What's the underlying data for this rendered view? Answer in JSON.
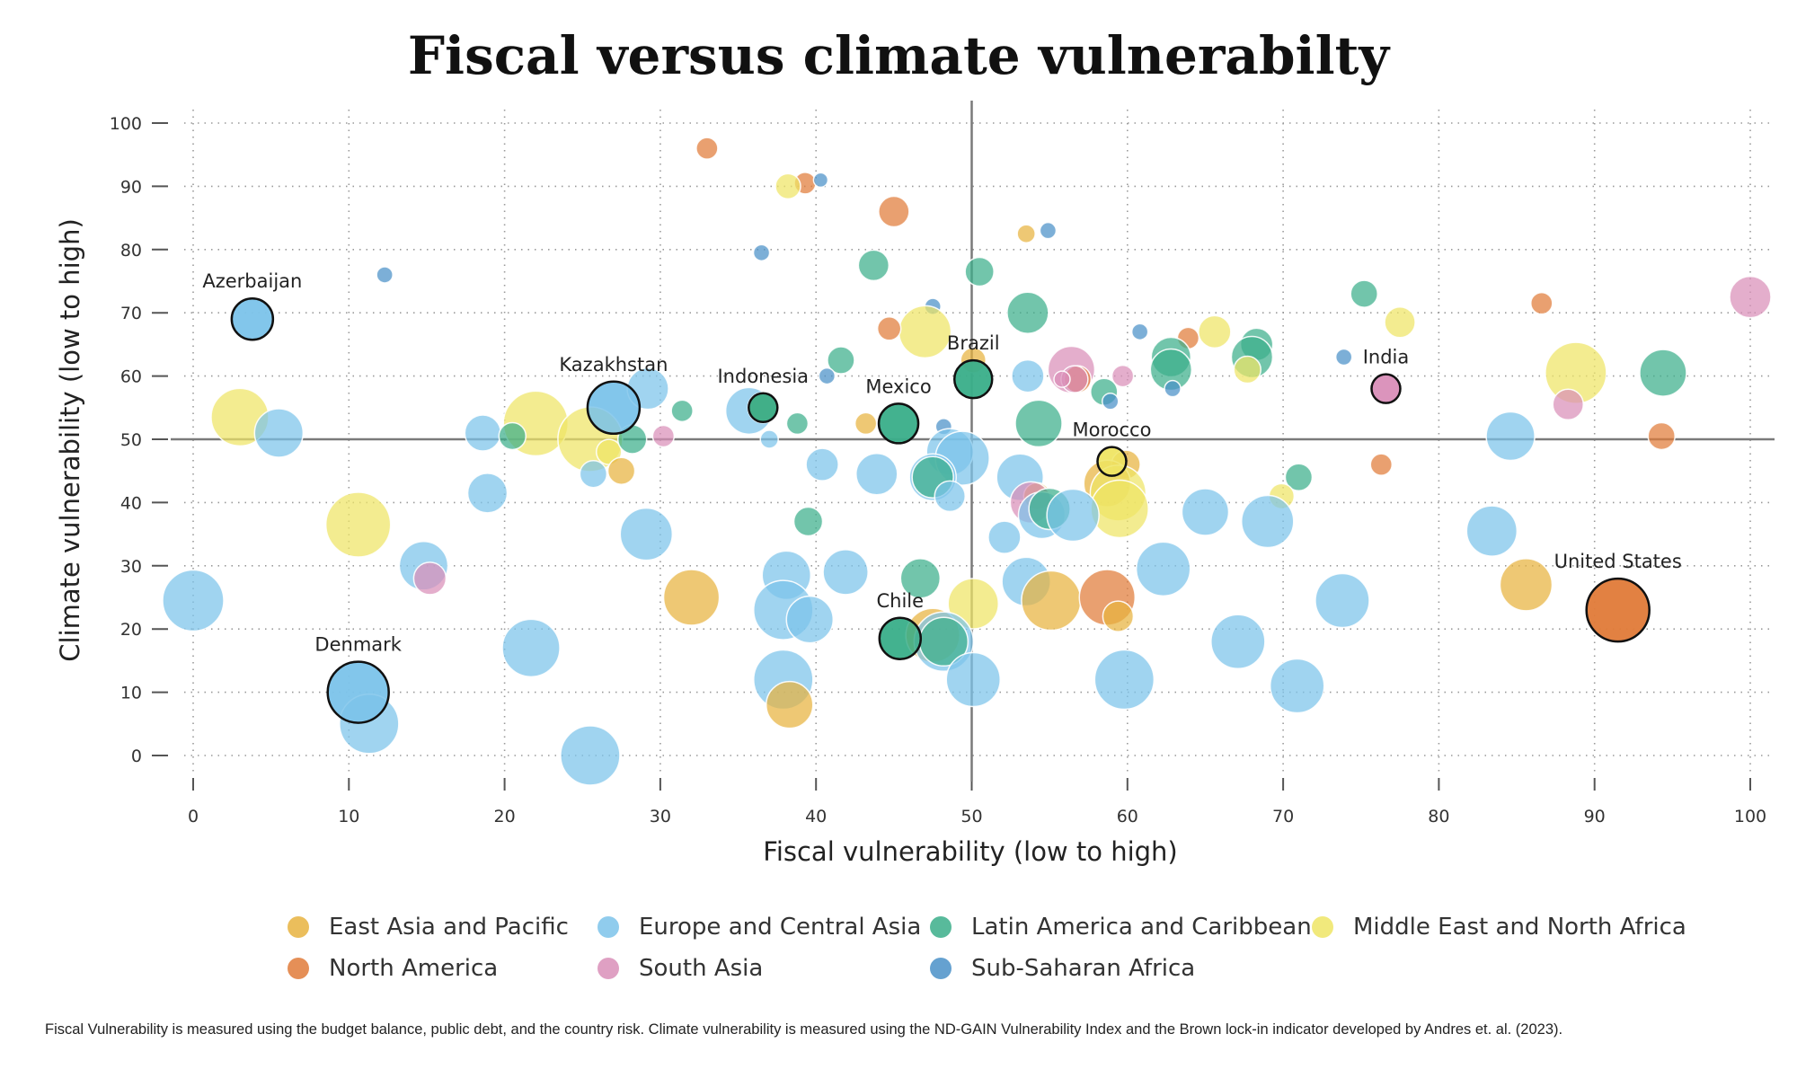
{
  "chart_data": {
    "type": "scatter",
    "title": "Fiscal versus climate vulnerabilty",
    "xlabel": "Fiscal vulnerability (low to high)",
    "ylabel": "Climate vulnerability (low to high)",
    "xlim": [
      0,
      100
    ],
    "ylim": [
      0,
      100
    ],
    "xticks": [
      0,
      10,
      20,
      30,
      40,
      50,
      60,
      70,
      80,
      90,
      100
    ],
    "yticks": [
      0,
      10,
      20,
      30,
      40,
      50,
      60,
      70,
      80,
      90,
      100
    ],
    "reference_lines": {
      "x": 50,
      "y": 50
    },
    "grid": "dotted",
    "legend_position": "bottom",
    "groups": [
      {
        "name": "East Asia and Pacific",
        "color": "#E8B33F"
      },
      {
        "name": "Europe and Central Asia",
        "color": "#7CC3EA"
      },
      {
        "name": "Latin America and Caribbean",
        "color": "#3BAE8A"
      },
      {
        "name": "Middle East and North Africa",
        "color": "#EFE565"
      },
      {
        "name": "North America",
        "color": "#E07B39"
      },
      {
        "name": "South Asia",
        "color": "#D98FB8"
      },
      {
        "name": "Sub-Saharan Africa",
        "color": "#4A90C8"
      }
    ],
    "points": [
      {
        "x": 33,
        "y": 96,
        "size": 12,
        "group": 4
      },
      {
        "x": 39.3,
        "y": 90.5,
        "size": 12,
        "group": 4
      },
      {
        "x": 38.2,
        "y": 90,
        "size": 14,
        "group": 3
      },
      {
        "x": 40.3,
        "y": 91,
        "size": 8,
        "group": 6
      },
      {
        "x": 45,
        "y": 86,
        "size": 17,
        "group": 4
      },
      {
        "x": 53.5,
        "y": 82.5,
        "size": 10,
        "group": 0
      },
      {
        "x": 54.9,
        "y": 83,
        "size": 9,
        "group": 6
      },
      {
        "x": 36.5,
        "y": 79.5,
        "size": 9,
        "group": 6
      },
      {
        "x": 12.3,
        "y": 76,
        "size": 9,
        "group": 6
      },
      {
        "x": 43.7,
        "y": 77.5,
        "size": 17,
        "group": 2
      },
      {
        "x": 50.5,
        "y": 76.5,
        "size": 16,
        "group": 2
      },
      {
        "x": 47.5,
        "y": 71,
        "size": 9,
        "group": 6
      },
      {
        "x": 47,
        "y": 67,
        "size": 29,
        "group": 3
      },
      {
        "x": 44.7,
        "y": 67.5,
        "size": 13,
        "group": 4
      },
      {
        "x": 53.6,
        "y": 70,
        "size": 23,
        "group": 2
      },
      {
        "x": 75.2,
        "y": 73,
        "size": 15,
        "group": 2
      },
      {
        "x": 77.5,
        "y": 68.5,
        "size": 17,
        "group": 3
      },
      {
        "x": 86.6,
        "y": 71.5,
        "size": 12,
        "group": 4
      },
      {
        "x": 100,
        "y": 72.5,
        "size": 23,
        "group": 5
      },
      {
        "x": 60.8,
        "y": 67,
        "size": 9,
        "group": 6
      },
      {
        "x": 63.9,
        "y": 66,
        "size": 12,
        "group": 4
      },
      {
        "x": 65.6,
        "y": 67,
        "size": 18,
        "group": 3
      },
      {
        "x": 68.3,
        "y": 65,
        "size": 18,
        "group": 2
      },
      {
        "x": 68,
        "y": 63,
        "size": 23,
        "group": 2
      },
      {
        "x": 62.8,
        "y": 63,
        "size": 22,
        "group": 2
      },
      {
        "x": 62.8,
        "y": 61,
        "size": 23,
        "group": 2
      },
      {
        "x": 67.7,
        "y": 61,
        "size": 15,
        "group": 3
      },
      {
        "x": 88.8,
        "y": 60.5,
        "size": 34,
        "group": 3
      },
      {
        "x": 94.4,
        "y": 60.5,
        "size": 26,
        "group": 2
      },
      {
        "x": 73.9,
        "y": 63,
        "size": 9,
        "group": 6
      },
      {
        "x": 76.6,
        "y": 58,
        "size": 16,
        "group": 5
      },
      {
        "x": 88.3,
        "y": 55.5,
        "size": 17,
        "group": 5
      },
      {
        "x": 84.6,
        "y": 50.5,
        "size": 27,
        "group": 1
      },
      {
        "x": 94.3,
        "y": 50.5,
        "size": 15,
        "group": 4
      },
      {
        "x": 41.6,
        "y": 62.5,
        "size": 15,
        "group": 2
      },
      {
        "x": 40.7,
        "y": 60,
        "size": 9,
        "group": 6
      },
      {
        "x": 50.1,
        "y": 62.5,
        "size": 14,
        "group": 0
      },
      {
        "x": 50.1,
        "y": 59.5,
        "size": 21,
        "group": 2
      },
      {
        "x": 53.6,
        "y": 60,
        "size": 18,
        "group": 1
      },
      {
        "x": 56.4,
        "y": 61,
        "size": 26,
        "group": 5
      },
      {
        "x": 56.8,
        "y": 59.5,
        "size": 15,
        "group": 4
      },
      {
        "x": 56.6,
        "y": 59.5,
        "size": 15,
        "group": 5
      },
      {
        "x": 59.7,
        "y": 60,
        "size": 12,
        "group": 5
      },
      {
        "x": 58.5,
        "y": 57.5,
        "size": 15,
        "group": 2
      },
      {
        "x": 58.9,
        "y": 56,
        "size": 9,
        "group": 6
      },
      {
        "x": 62.9,
        "y": 58,
        "size": 9,
        "group": 6
      },
      {
        "x": 55.8,
        "y": 59.5,
        "size": 9,
        "group": 5
      },
      {
        "x": 54.3,
        "y": 52.5,
        "size": 26,
        "group": 2
      },
      {
        "x": 59,
        "y": 46.5,
        "size": 16,
        "group": 3
      },
      {
        "x": 59.9,
        "y": 46,
        "size": 16,
        "group": 0
      },
      {
        "x": 58.7,
        "y": 43,
        "size": 26,
        "group": 0
      },
      {
        "x": 59.4,
        "y": 41.5,
        "size": 31,
        "group": 3
      },
      {
        "x": 59.5,
        "y": 39,
        "size": 32,
        "group": 3
      },
      {
        "x": 71,
        "y": 44,
        "size": 15,
        "group": 2
      },
      {
        "x": 69.9,
        "y": 41,
        "size": 14,
        "group": 3
      },
      {
        "x": 65,
        "y": 38.5,
        "size": 26,
        "group": 1
      },
      {
        "x": 69,
        "y": 37,
        "size": 29,
        "group": 1
      },
      {
        "x": 3,
        "y": 53.5,
        "size": 32,
        "group": 3
      },
      {
        "x": 5.5,
        "y": 51,
        "size": 27,
        "group": 1
      },
      {
        "x": 3.8,
        "y": 69,
        "size": 23,
        "group": 1
      },
      {
        "x": 27,
        "y": 55,
        "size": 29,
        "group": 1
      },
      {
        "x": 29.2,
        "y": 58,
        "size": 23,
        "group": 1
      },
      {
        "x": 31.4,
        "y": 54.5,
        "size": 12,
        "group": 2
      },
      {
        "x": 22,
        "y": 52.5,
        "size": 36,
        "group": 3
      },
      {
        "x": 18.6,
        "y": 51,
        "size": 20,
        "group": 1
      },
      {
        "x": 20.5,
        "y": 50.5,
        "size": 15,
        "group": 2
      },
      {
        "x": 25.5,
        "y": 50,
        "size": 36,
        "group": 3
      },
      {
        "x": 26.7,
        "y": 48,
        "size": 14,
        "group": 3
      },
      {
        "x": 28.2,
        "y": 50,
        "size": 16,
        "group": 2
      },
      {
        "x": 30.2,
        "y": 50.5,
        "size": 12,
        "group": 5
      },
      {
        "x": 25.7,
        "y": 44.5,
        "size": 15,
        "group": 1
      },
      {
        "x": 27.5,
        "y": 45,
        "size": 15,
        "group": 0
      },
      {
        "x": 35.7,
        "y": 54.5,
        "size": 26,
        "group": 1
      },
      {
        "x": 36.6,
        "y": 55,
        "size": 17,
        "group": 0
      },
      {
        "x": 36.6,
        "y": 55,
        "size": 16,
        "group": 2
      },
      {
        "x": 37,
        "y": 50,
        "size": 10,
        "group": 1
      },
      {
        "x": 38.8,
        "y": 52.5,
        "size": 12,
        "group": 2
      },
      {
        "x": 43.2,
        "y": 52.5,
        "size": 12,
        "group": 0
      },
      {
        "x": 45.3,
        "y": 52.5,
        "size": 22,
        "group": 2
      },
      {
        "x": 48.2,
        "y": 52,
        "size": 9,
        "group": 6
      },
      {
        "x": 48.6,
        "y": 48,
        "size": 26,
        "group": 1
      },
      {
        "x": 49.4,
        "y": 47,
        "size": 30,
        "group": 1
      },
      {
        "x": 40.4,
        "y": 46,
        "size": 18,
        "group": 1
      },
      {
        "x": 43.9,
        "y": 44.5,
        "size": 23,
        "group": 1
      },
      {
        "x": 47.5,
        "y": 44,
        "size": 26,
        "group": 1
      },
      {
        "x": 47.5,
        "y": 44,
        "size": 23,
        "group": 2
      },
      {
        "x": 48.6,
        "y": 41,
        "size": 17,
        "group": 1
      },
      {
        "x": 53.1,
        "y": 44,
        "size": 26,
        "group": 1
      },
      {
        "x": 54.2,
        "y": 41,
        "size": 15,
        "group": 0
      },
      {
        "x": 53.8,
        "y": 40,
        "size": 23,
        "group": 5
      },
      {
        "x": 54.5,
        "y": 38,
        "size": 26,
        "group": 1
      },
      {
        "x": 55,
        "y": 39,
        "size": 23,
        "group": 2
      },
      {
        "x": 56.5,
        "y": 38,
        "size": 29,
        "group": 1
      },
      {
        "x": 52.1,
        "y": 34.5,
        "size": 18,
        "group": 1
      },
      {
        "x": 39.5,
        "y": 37,
        "size": 16,
        "group": 2
      },
      {
        "x": 18.9,
        "y": 41.5,
        "size": 22,
        "group": 1
      },
      {
        "x": 10.6,
        "y": 36.5,
        "size": 36,
        "group": 3
      },
      {
        "x": 29.1,
        "y": 35,
        "size": 29,
        "group": 1
      },
      {
        "x": 14.8,
        "y": 30,
        "size": 27,
        "group": 1
      },
      {
        "x": 15.2,
        "y": 28,
        "size": 18,
        "group": 5
      },
      {
        "x": 0,
        "y": 24.5,
        "size": 34,
        "group": 1
      },
      {
        "x": 32,
        "y": 25,
        "size": 31,
        "group": 0
      },
      {
        "x": 38.1,
        "y": 28.5,
        "size": 27,
        "group": 1
      },
      {
        "x": 41.9,
        "y": 29,
        "size": 25,
        "group": 1
      },
      {
        "x": 46.7,
        "y": 28,
        "size": 22,
        "group": 2
      },
      {
        "x": 50.1,
        "y": 24,
        "size": 28,
        "group": 3
      },
      {
        "x": 53.5,
        "y": 27.5,
        "size": 27,
        "group": 1
      },
      {
        "x": 55.1,
        "y": 24.5,
        "size": 33,
        "group": 0
      },
      {
        "x": 58.7,
        "y": 25,
        "size": 31,
        "group": 4
      },
      {
        "x": 59.4,
        "y": 22,
        "size": 17,
        "group": 0
      },
      {
        "x": 62.3,
        "y": 29.5,
        "size": 30,
        "group": 1
      },
      {
        "x": 37.9,
        "y": 23,
        "size": 33,
        "group": 1
      },
      {
        "x": 39.6,
        "y": 21.5,
        "size": 26,
        "group": 1
      },
      {
        "x": 45.4,
        "y": 18.5,
        "size": 23,
        "group": 2
      },
      {
        "x": 47.5,
        "y": 19,
        "size": 30,
        "group": 0
      },
      {
        "x": 48.2,
        "y": 18,
        "size": 33,
        "group": 1
      },
      {
        "x": 48.2,
        "y": 18,
        "size": 27,
        "group": 2
      },
      {
        "x": 21.7,
        "y": 17,
        "size": 32,
        "group": 1
      },
      {
        "x": 10.6,
        "y": 10,
        "size": 34,
        "group": 1
      },
      {
        "x": 11.3,
        "y": 5,
        "size": 33,
        "group": 1
      },
      {
        "x": 25.5,
        "y": 0,
        "size": 33,
        "group": 1
      },
      {
        "x": 37.9,
        "y": 12,
        "size": 33,
        "group": 1
      },
      {
        "x": 38.3,
        "y": 8,
        "size": 26,
        "group": 0
      },
      {
        "x": 50.1,
        "y": 12,
        "size": 30,
        "group": 1
      },
      {
        "x": 59.8,
        "y": 12,
        "size": 33,
        "group": 1
      },
      {
        "x": 67.1,
        "y": 18,
        "size": 30,
        "group": 1
      },
      {
        "x": 70.9,
        "y": 11,
        "size": 30,
        "group": 1
      },
      {
        "x": 73.8,
        "y": 24.5,
        "size": 30,
        "group": 1
      },
      {
        "x": 76.3,
        "y": 46,
        "size": 12,
        "group": 4
      },
      {
        "x": 83.4,
        "y": 35.5,
        "size": 28,
        "group": 1
      },
      {
        "x": 85.6,
        "y": 27,
        "size": 29,
        "group": 0
      },
      {
        "x": 91.5,
        "y": 23,
        "size": 35,
        "group": 4
      }
    ],
    "highlighted": [
      {
        "label": "Azerbaijan",
        "x": 3.8,
        "y": 69,
        "size": 23,
        "group": 1,
        "label_dx": 0,
        "label_dy": -1,
        "label_pos": "above"
      },
      {
        "label": "Kazakhstan",
        "x": 27,
        "y": 55,
        "size": 29,
        "group": 1,
        "label_pos": "above"
      },
      {
        "label": "Indonesia",
        "x": 36.6,
        "y": 55,
        "size": 16,
        "group": 2,
        "label_pos": "above"
      },
      {
        "label": "Mexico",
        "x": 45.3,
        "y": 52.5,
        "size": 22,
        "group": 2,
        "label_pos": "above"
      },
      {
        "label": "Brazil",
        "x": 50.1,
        "y": 59.5,
        "size": 21,
        "group": 2,
        "label_pos": "above"
      },
      {
        "label": "Morocco",
        "x": 59,
        "y": 46.5,
        "size": 16,
        "group": 3,
        "label_pos": "above"
      },
      {
        "label": "India",
        "x": 76.6,
        "y": 58,
        "size": 16,
        "group": 5,
        "label_pos": "above"
      },
      {
        "label": "Chile",
        "x": 45.4,
        "y": 18.5,
        "size": 23,
        "group": 2,
        "label_pos": "above"
      },
      {
        "label": "Denmark",
        "x": 10.6,
        "y": 10,
        "size": 34,
        "group": 1,
        "label_pos": "above"
      },
      {
        "label": "United States",
        "x": 91.5,
        "y": 23,
        "size": 35,
        "group": 4,
        "label_pos": "above"
      }
    ]
  },
  "footnote": "Fiscal Vulnerability is measured using the budget balance, public debt, and the country risk. Climate vulnerability is measured using the ND-GAIN Vulnerability Index and the Brown lock-in indicator developed by Andres et. al. (2023)."
}
